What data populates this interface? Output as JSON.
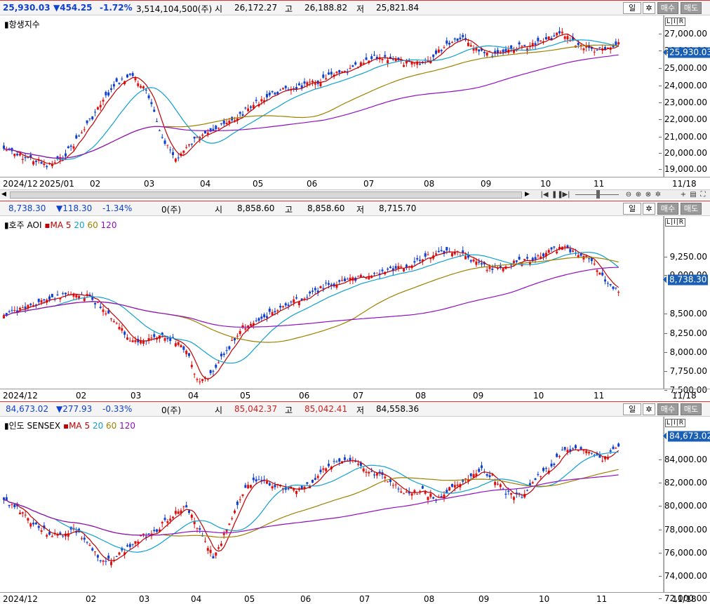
{
  "panel1": {
    "price": "25,930.03",
    "change": "▼454.25",
    "pct": "-1.72%",
    "volume": "3,514,104,500(주)",
    "open_label": "시",
    "open": "26,172.27",
    "high_label": "고",
    "high": "26,188.82",
    "low_label": "저",
    "low": "25,821.84",
    "title": "항생지수",
    "yticks": [
      "27,000.00",
      "26,000.00",
      "25,000.00",
      "24,000.00",
      "23,000.00",
      "22,000.00",
      "21,000.00",
      "20,000.00",
      "19,000.00"
    ],
    "price_tag": "25,930.03",
    "xlabels": [
      "2024/12",
      "2025/01",
      "02",
      "03",
      "04",
      "05",
      "06",
      "07",
      "08",
      "09",
      "10",
      "11",
      "11/18"
    ]
  },
  "panel2": {
    "price": "8,738.30",
    "change": "▼118.30",
    "pct": "-1.34%",
    "volume": "0(주)",
    "open_label": "시",
    "open": "8,858.60",
    "high_label": "고",
    "high": "8,858.60",
    "low_label": "저",
    "low": "8,715.70",
    "title": "호주 AOI",
    "yticks": [
      "9,250.00",
      "9,000.00",
      "8,500.00",
      "8,250.00",
      "8,000.00",
      "7,750.00",
      "7,500.00"
    ],
    "price_tag": "8,738.30",
    "xlabels": [
      "2024/12",
      "02",
      "03",
      "04",
      "05",
      "06",
      "07",
      "08",
      "09",
      "10",
      "11",
      "11/18"
    ]
  },
  "panel3": {
    "price": "84,673.02",
    "change": "▼277.93",
    "pct": "-0.33%",
    "volume": "0(주)",
    "open_label": "시",
    "open": "85,042.37",
    "high_label": "고",
    "high": "85,042.41",
    "low_label": "저",
    "low": "84,558.36",
    "title": "인도 SENSEX",
    "yticks": [
      "84,000.00",
      "82,000.00",
      "80,000.00",
      "78,000.00",
      "76,000.00",
      "74,000.00",
      "72,000.00"
    ],
    "price_tag": "84,673.02",
    "xlabels": [
      "2024/12",
      "02",
      "03",
      "04",
      "05",
      "06",
      "07",
      "08",
      "09",
      "10",
      "11",
      "11/18"
    ]
  },
  "ma_legend": {
    "prefix": "MA",
    "p5": "5",
    "p20": "20",
    "p60": "60",
    "p120": "120"
  },
  "buttons": {
    "period": "일",
    "buy": "매수",
    "sell": "매도",
    "lir": "L|I|R"
  },
  "colors": {
    "up": "#e01010",
    "down": "#1040d0",
    "ma5": "#c00000",
    "ma20": "#10a0d0",
    "ma60": "#a08000",
    "ma120": "#9010c0"
  }
}
